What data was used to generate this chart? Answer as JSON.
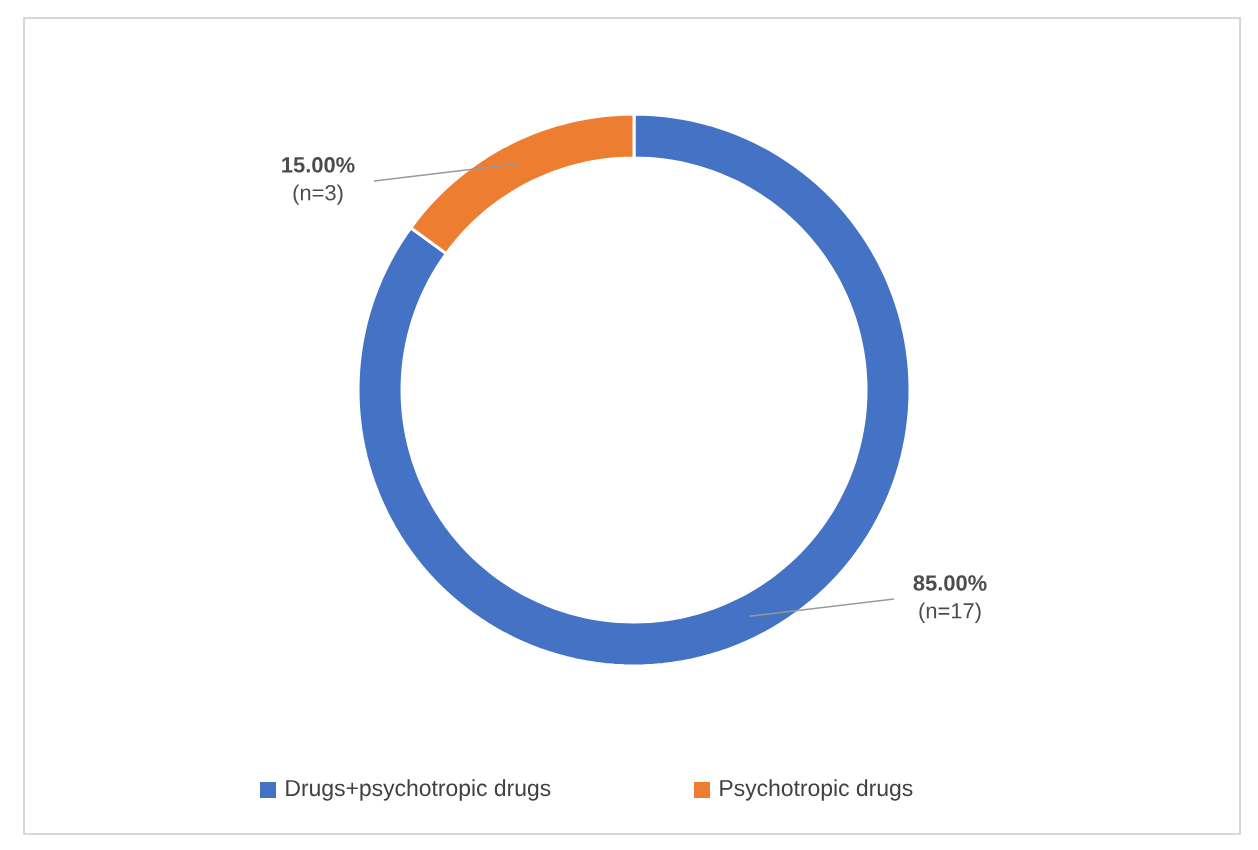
{
  "chart_data": {
    "type": "donut",
    "categories": [
      "Drugs+psychotropic drugs",
      "Psychotropic drugs"
    ],
    "values": [
      85,
      15
    ],
    "colors": [
      "#4472c4",
      "#ed7d31"
    ],
    "value_labels": [
      "**85.00%** (n=17)",
      "**15.00%** (n=3)"
    ],
    "legend": "bottom"
  }
}
